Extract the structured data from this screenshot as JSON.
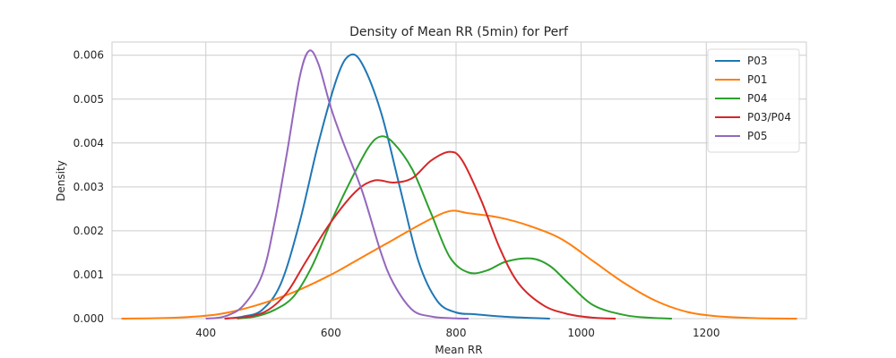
{
  "chart_data": {
    "type": "line",
    "title": "Density of Mean RR (5min) for Perf",
    "xlabel": "Mean RR",
    "ylabel": "Density",
    "xlim": [
      250,
      1360
    ],
    "ylim": [
      0,
      0.0063
    ],
    "xticks": [
      400,
      600,
      800,
      1000,
      1200
    ],
    "xtick_labels": [
      "400",
      "600",
      "800",
      "1000",
      "1200"
    ],
    "yticks": [
      0,
      0.001,
      0.002,
      0.003,
      0.004,
      0.005,
      0.006
    ],
    "ytick_labels": [
      "0.000",
      "0.001",
      "0.002",
      "0.003",
      "0.004",
      "0.005",
      "0.006"
    ],
    "grid": true,
    "legend_position": "top-right",
    "series": [
      {
        "name": "P03",
        "color": "#1f77b4",
        "points": [
          [
            430,
            0
          ],
          [
            460,
            5e-05
          ],
          [
            490,
            0.0002
          ],
          [
            520,
            0.0008
          ],
          [
            550,
            0.0022
          ],
          [
            580,
            0.004
          ],
          [
            610,
            0.0055
          ],
          [
            630,
            0.006
          ],
          [
            650,
            0.0058
          ],
          [
            680,
            0.0047
          ],
          [
            710,
            0.003
          ],
          [
            740,
            0.0013
          ],
          [
            770,
            0.0004
          ],
          [
            800,
            0.00014
          ],
          [
            830,
            0.0001
          ],
          [
            870,
            5e-05
          ],
          [
            910,
            2e-05
          ],
          [
            950,
            0
          ]
        ]
      },
      {
        "name": "P01",
        "color": "#ff7f0e",
        "points": [
          [
            265,
            0
          ],
          [
            350,
            2e-05
          ],
          [
            420,
            0.0001
          ],
          [
            480,
            0.0003
          ],
          [
            540,
            0.0006
          ],
          [
            600,
            0.001
          ],
          [
            650,
            0.0014
          ],
          [
            700,
            0.0018
          ],
          [
            750,
            0.0022
          ],
          [
            790,
            0.00245
          ],
          [
            820,
            0.0024
          ],
          [
            870,
            0.0023
          ],
          [
            920,
            0.0021
          ],
          [
            970,
            0.0018
          ],
          [
            1020,
            0.0013
          ],
          [
            1070,
            0.0008
          ],
          [
            1120,
            0.0004
          ],
          [
            1170,
            0.00015
          ],
          [
            1220,
            5e-05
          ],
          [
            1280,
            1e-05
          ],
          [
            1345,
            0
          ]
        ]
      },
      {
        "name": "P04",
        "color": "#2ca02c",
        "points": [
          [
            450,
            0
          ],
          [
            480,
            5e-05
          ],
          [
            510,
            0.0002
          ],
          [
            540,
            0.0005
          ],
          [
            570,
            0.0012
          ],
          [
            600,
            0.0022
          ],
          [
            630,
            0.0031
          ],
          [
            660,
            0.0039
          ],
          [
            680,
            0.00415
          ],
          [
            700,
            0.004
          ],
          [
            730,
            0.0034
          ],
          [
            760,
            0.0024
          ],
          [
            790,
            0.0014
          ],
          [
            820,
            0.00105
          ],
          [
            850,
            0.0011
          ],
          [
            880,
            0.0013
          ],
          [
            920,
            0.00137
          ],
          [
            950,
            0.0012
          ],
          [
            980,
            0.0008
          ],
          [
            1020,
            0.0003
          ],
          [
            1070,
            8e-05
          ],
          [
            1110,
            2e-05
          ],
          [
            1145,
            0
          ]
        ]
      },
      {
        "name": "P03/P04",
        "color": "#d62728",
        "points": [
          [
            430,
            0
          ],
          [
            470,
            5e-05
          ],
          [
            500,
            0.0002
          ],
          [
            530,
            0.0006
          ],
          [
            560,
            0.0013
          ],
          [
            600,
            0.0022
          ],
          [
            640,
            0.0029
          ],
          [
            670,
            0.00315
          ],
          [
            700,
            0.0031
          ],
          [
            730,
            0.0032
          ],
          [
            760,
            0.0036
          ],
          [
            790,
            0.0038
          ],
          [
            810,
            0.0036
          ],
          [
            840,
            0.0027
          ],
          [
            870,
            0.0016
          ],
          [
            900,
            0.0008
          ],
          [
            940,
            0.0003
          ],
          [
            980,
            0.0001
          ],
          [
            1020,
            2e-05
          ],
          [
            1055,
            0
          ]
        ]
      },
      {
        "name": "P05",
        "color": "#9467bd",
        "points": [
          [
            400,
            0
          ],
          [
            430,
            5e-05
          ],
          [
            460,
            0.0003
          ],
          [
            490,
            0.001
          ],
          [
            510,
            0.0022
          ],
          [
            530,
            0.0038
          ],
          [
            550,
            0.0055
          ],
          [
            565,
            0.0061
          ],
          [
            580,
            0.0058
          ],
          [
            600,
            0.0048
          ],
          [
            620,
            0.004
          ],
          [
            650,
            0.0029
          ],
          [
            680,
            0.0015
          ],
          [
            700,
            0.0008
          ],
          [
            730,
            0.0002
          ],
          [
            760,
            5e-05
          ],
          [
            790,
            1e-05
          ],
          [
            820,
            0
          ]
        ]
      }
    ]
  }
}
